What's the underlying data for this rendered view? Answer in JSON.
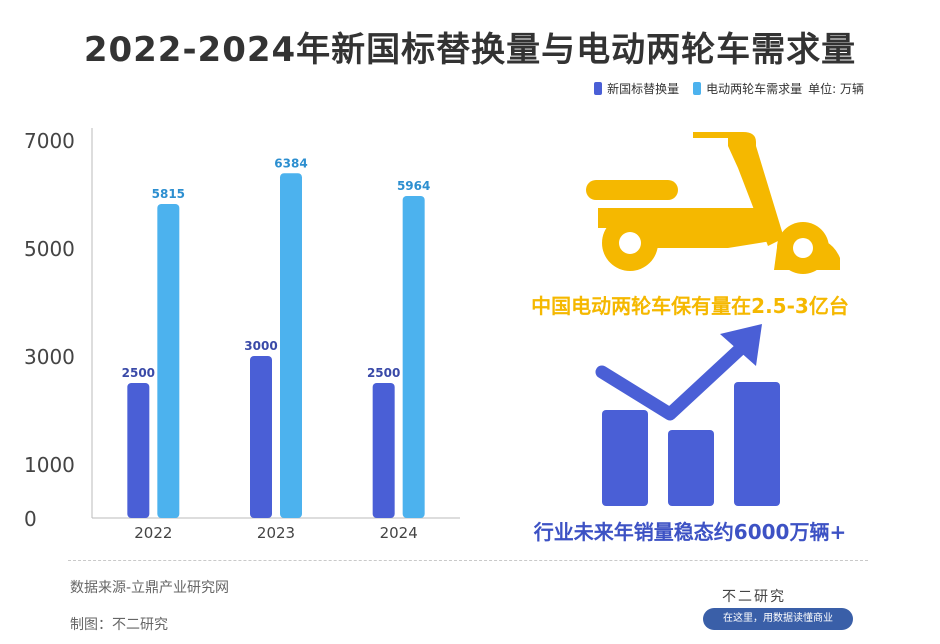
{
  "title": "2022-2024年新国标替换量与电动两轮车需求量",
  "legend": {
    "series1": "新国标替换量",
    "series2": "电动两轮车需求量",
    "unit": "单位: 万辆"
  },
  "colors": {
    "series1": "#4a5fd6",
    "series2": "#4cb2ee",
    "scooter": "#f5b800",
    "growth": "#3d52c4"
  },
  "chart_data": {
    "type": "bar",
    "categories": [
      "2022",
      "2023",
      "2024"
    ],
    "series": [
      {
        "name": "新国标替换量",
        "values": [
          2500,
          3000,
          2500
        ]
      },
      {
        "name": "电动两轮车需求量",
        "values": [
          5815,
          6384,
          5964
        ]
      }
    ],
    "yticks": [
      0,
      1000,
      3000,
      5000,
      7000
    ],
    "ylim": [
      0,
      7000
    ],
    "title": "2022-2024年新国标替换量与电动两轮车需求量",
    "xlabel": "",
    "ylabel": "",
    "grid": false,
    "legend_position": "top-right"
  },
  "callouts": {
    "ownership": "中国电动两轮车保有量在2.5-3亿台",
    "demand": "行业未来年销量稳态约6000万辆+"
  },
  "icons": {
    "scooter": "scooter-icon",
    "growth": "growth-chart-icon"
  },
  "footer": {
    "source": "数据来源-立鼎产业研究网",
    "maker": "制图：不二研究",
    "brand": "不二研究",
    "brand_tag": "在这里，用数据读懂商业"
  }
}
